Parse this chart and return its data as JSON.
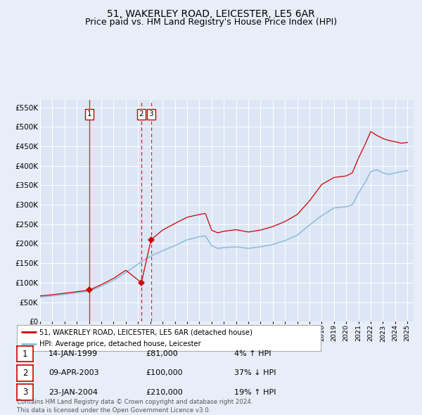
{
  "title": "51, WAKERLEY ROAD, LEICESTER, LE5 6AR",
  "subtitle": "Price paid vs. HM Land Registry's House Price Index (HPI)",
  "ylim": [
    0,
    570000
  ],
  "yticks": [
    0,
    50000,
    100000,
    150000,
    200000,
    250000,
    300000,
    350000,
    400000,
    450000,
    500000,
    550000
  ],
  "ytick_labels": [
    "£0",
    "£50K",
    "£100K",
    "£150K",
    "£200K",
    "£250K",
    "£300K",
    "£350K",
    "£400K",
    "£450K",
    "£500K",
    "£550K"
  ],
  "background_color": "#e8eef8",
  "plot_bg_color": "#dce6f5",
  "grid_color": "#ffffff",
  "red_line_color": "#cc0000",
  "blue_line_color": "#8bbcdd",
  "sale_marker_color": "#cc0000",
  "title_fontsize": 10,
  "subtitle_fontsize": 9,
  "legend_label_red": "51, WAKERLEY ROAD, LEICESTER, LE5 6AR (detached house)",
  "legend_label_blue": "HPI: Average price, detached house, Leicester",
  "footer_text": "Contains HM Land Registry data © Crown copyright and database right 2024.\nThis data is licensed under the Open Government Licence v3.0.",
  "sales": [
    {
      "num": 1,
      "date_label": "14-JAN-1999",
      "price_label": "£81,000",
      "rel_label": "4% ↑ HPI",
      "year": 1999.04,
      "price": 81000
    },
    {
      "num": 2,
      "date_label": "09-APR-2003",
      "price_label": "£100,000",
      "rel_label": "37% ↓ HPI",
      "year": 2003.27,
      "price": 100000
    },
    {
      "num": 3,
      "date_label": "23-JAN-2004",
      "price_label": "£210,000",
      "rel_label": "19% ↑ HPI",
      "year": 2004.06,
      "price": 210000
    }
  ],
  "hpi_anchors": {
    "years": [
      1995,
      1996,
      1997,
      1998,
      1999,
      2000,
      2001,
      2002,
      2003,
      2004,
      2005,
      2006,
      2007,
      2008,
      2008.5,
      2009,
      2009.5,
      2010,
      2011,
      2012,
      2013,
      2014,
      2015,
      2016,
      2017,
      2018,
      2019,
      2020,
      2020.5,
      2021,
      2021.5,
      2022,
      2022.5,
      2023,
      2023.5,
      2024,
      2024.5,
      2025
    ],
    "vals": [
      63000,
      66000,
      70000,
      74000,
      78000,
      91000,
      106000,
      126000,
      148000,
      168000,
      182000,
      195000,
      210000,
      218000,
      220000,
      195000,
      188000,
      190000,
      192000,
      188000,
      192000,
      198000,
      208000,
      222000,
      248000,
      272000,
      292000,
      295000,
      300000,
      330000,
      355000,
      385000,
      390000,
      382000,
      378000,
      382000,
      385000,
      388000
    ]
  },
  "red_anchors": {
    "years": [
      1995,
      1996,
      1997,
      1998,
      1999.04,
      2000,
      2001,
      2002,
      2003.27,
      2004.06,
      2005,
      2006,
      2007,
      2008,
      2008.5,
      2009,
      2009.5,
      2010,
      2011,
      2012,
      2013,
      2014,
      2015,
      2016,
      2017,
      2018,
      2019,
      2020,
      2020.5,
      2021,
      2021.5,
      2022,
      2022.5,
      2023,
      2023.5,
      2024,
      2024.5,
      2025
    ],
    "vals": [
      66000,
      69000,
      73000,
      77000,
      81000,
      95000,
      111000,
      132000,
      100000,
      210000,
      235000,
      252000,
      268000,
      275000,
      278000,
      235000,
      228000,
      232000,
      236000,
      230000,
      235000,
      244000,
      257000,
      275000,
      310000,
      352000,
      370000,
      374000,
      382000,
      420000,
      452000,
      488000,
      478000,
      470000,
      465000,
      462000,
      458000,
      460000
    ]
  }
}
